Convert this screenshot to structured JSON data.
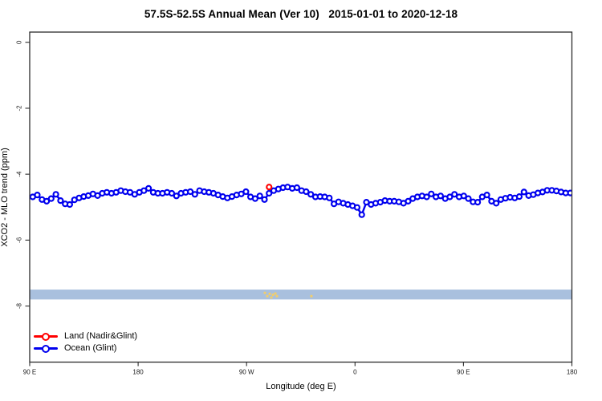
{
  "title": "57.5S-52.5S Annual Mean (Ver 10)   2015-01-01 to 2020-12-18",
  "legend": {
    "items": [
      {
        "label": "Land (Nadir&Glint)",
        "color": "#ff0000"
      },
      {
        "label": "Ocean (Glint)",
        "color": "#0000ee"
      }
    ]
  },
  "chart_data": {
    "type": "line",
    "title": "57.5S-52.5S Annual Mean (Ver 10)   2015-01-01 to 2020-12-18",
    "xlabel": "Longitude (deg E)",
    "ylabel": "XCO2 - MLO trend (ppm)",
    "grid": "off",
    "legend_position": "bottom-left-inside",
    "x_axis": {
      "note": "wrapped longitude axis; position = degrees east of 90E along axis, total span 450 deg",
      "span": [
        0,
        450
      ],
      "ticks": [
        {
          "pos": 0,
          "label": "90 E"
        },
        {
          "pos": 90,
          "label": "180"
        },
        {
          "pos": 180,
          "label": "90 W"
        },
        {
          "pos": 270,
          "label": "0"
        },
        {
          "pos": 360,
          "label": "90 E"
        },
        {
          "pos": 450,
          "label": "180"
        }
      ]
    },
    "y_axis": {
      "range": [
        -9.7,
        0.31
      ],
      "ticks": [
        0,
        -2,
        -4,
        -6,
        -8
      ],
      "tick_labels": [
        "0",
        "-2",
        "-4",
        "-6",
        "-8"
      ]
    },
    "reference_band": {
      "from": -7.8,
      "to": -7.5,
      "color": "#a9c0de"
    },
    "speckles": {
      "color": "#f0cd6e",
      "note": "small gold flecks inside reference band",
      "points": [
        [
          195.2,
          -7.6
        ],
        [
          197.2,
          -7.7
        ],
        [
          199.2,
          -7.63
        ],
        [
          200.6,
          -7.74
        ],
        [
          201.9,
          -7.66
        ],
        [
          203.9,
          -7.62
        ],
        [
          205.2,
          -7.7
        ],
        [
          233.8,
          -7.7
        ]
      ]
    },
    "series": [
      {
        "name": "Land (Nadir&Glint)",
        "color": "#ff0000",
        "marker": "open-circle",
        "points": [
          [
            198.7,
            -4.39
          ]
        ]
      },
      {
        "name": "Ocean (Glint)",
        "color": "#0000ee",
        "marker": "open-circle",
        "x_start": 2.5,
        "x_step": 3.8466,
        "values": [
          -4.69,
          -4.63,
          -4.77,
          -4.82,
          -4.74,
          -4.61,
          -4.8,
          -4.9,
          -4.92,
          -4.78,
          -4.72,
          -4.68,
          -4.65,
          -4.6,
          -4.65,
          -4.58,
          -4.55,
          -4.58,
          -4.55,
          -4.5,
          -4.53,
          -4.55,
          -4.61,
          -4.55,
          -4.5,
          -4.43,
          -4.55,
          -4.58,
          -4.58,
          -4.55,
          -4.58,
          -4.66,
          -4.58,
          -4.55,
          -4.53,
          -4.61,
          -4.5,
          -4.53,
          -4.55,
          -4.58,
          -4.63,
          -4.68,
          -4.72,
          -4.68,
          -4.63,
          -4.6,
          -4.53,
          -4.69,
          -4.74,
          -4.66,
          -4.77,
          -4.58,
          -4.5,
          -4.45,
          -4.41,
          -4.39,
          -4.43,
          -4.41,
          -4.5,
          -4.53,
          -4.61,
          -4.69,
          -4.68,
          -4.69,
          -4.72,
          -4.9,
          -4.84,
          -4.88,
          -4.92,
          -4.96,
          -5.01,
          -5.23,
          -4.85,
          -4.92,
          -4.88,
          -4.85,
          -4.8,
          -4.82,
          -4.82,
          -4.84,
          -4.88,
          -4.82,
          -4.74,
          -4.69,
          -4.66,
          -4.69,
          -4.6,
          -4.69,
          -4.66,
          -4.74,
          -4.69,
          -4.61,
          -4.69,
          -4.66,
          -4.74,
          -4.84,
          -4.85,
          -4.69,
          -4.63,
          -4.82,
          -4.88,
          -4.77,
          -4.73,
          -4.7,
          -4.72,
          -4.68,
          -4.54,
          -4.65,
          -4.62,
          -4.57,
          -4.54,
          -4.49,
          -4.49,
          -4.51,
          -4.54,
          -4.57,
          -4.57
        ]
      }
    ]
  }
}
